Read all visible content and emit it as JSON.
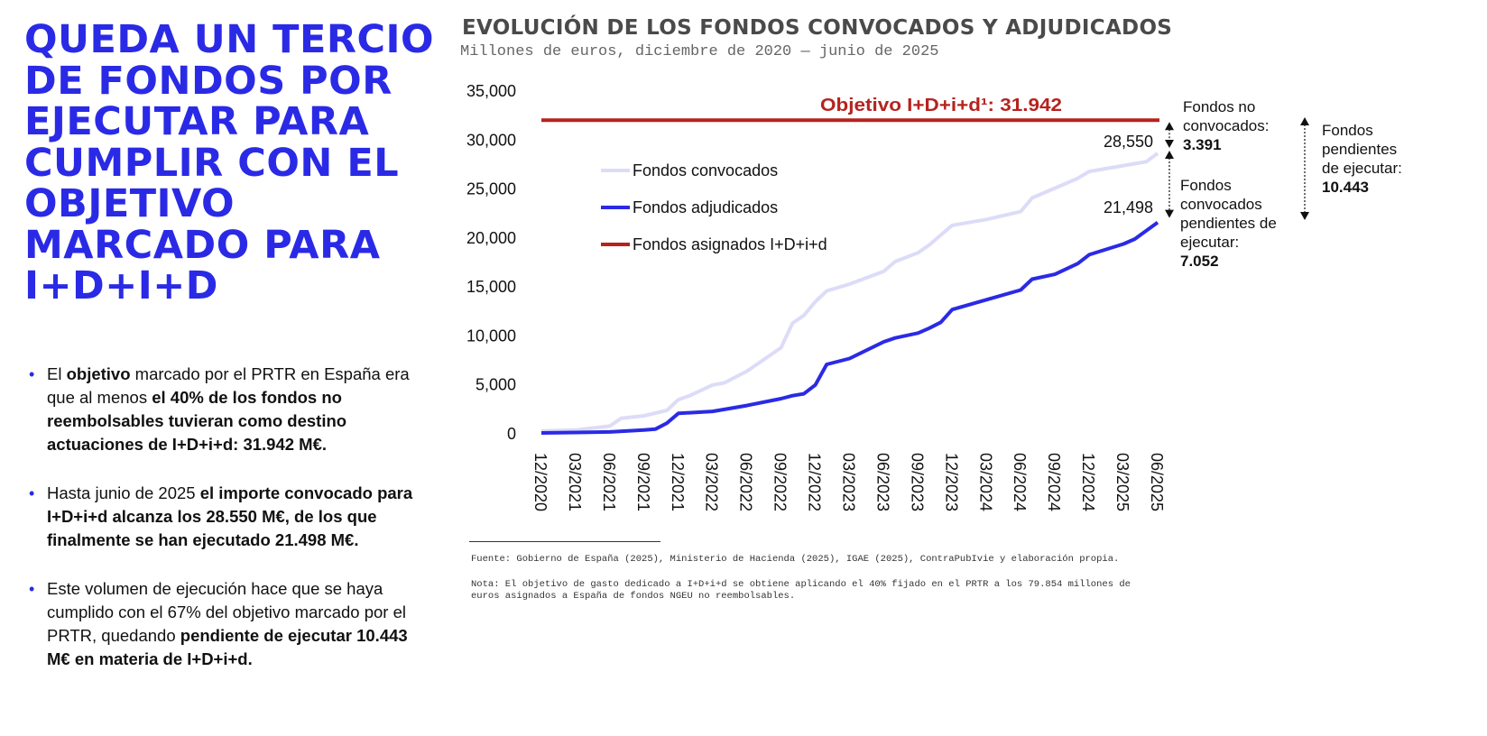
{
  "headline": "Queda un tercio de fondos por ejecutar para cumplir con el objetivo marcado para I+D+I+D",
  "bullets": [
    {
      "parts": [
        {
          "t": "El ",
          "b": false
        },
        {
          "t": "objetivo",
          "b": true
        },
        {
          "t": " marcado por el PRTR en España era que al menos ",
          "b": false
        },
        {
          "t": "el 40% de los fondos no reembolsables tuvieran como destino actuaciones de I+D+i+d: 31.942 M€.",
          "b": true
        }
      ]
    },
    {
      "parts": [
        {
          "t": "Hasta junio de 2025 ",
          "b": false
        },
        {
          "t": "el importe convocado para I+D+i+d alcanza los 28.550 M€, de los que finalmente se han ejecutado 21.498 M€.",
          "b": true
        }
      ]
    },
    {
      "parts": [
        {
          "t": "Este volumen de ejecución hace que se haya cumplido con el 67% del objetivo marcado por el PRTR, quedando ",
          "b": false
        },
        {
          "t": "pendiente de ejecutar 10.443 M€ en materia de I+D+i+d.",
          "b": true
        }
      ]
    }
  ],
  "chart_data": {
    "type": "line",
    "title": "EVOLUCIÓN DE LOS FONDOS CONVOCADOS Y ADJUDICADOS",
    "subtitle": "Millones de euros, diciembre de 2020 — junio de 2025",
    "ylim": [
      0,
      35000
    ],
    "yticks": [
      "0",
      "5,000",
      "10,000",
      "15,000",
      "20,000",
      "25,000",
      "30,000",
      "35,000"
    ],
    "ytick_values": [
      0,
      5000,
      10000,
      15000,
      20000,
      25000,
      30000,
      35000
    ],
    "xticks": [
      "12/2020",
      "03/2021",
      "06/2021",
      "09/2021",
      "12/2021",
      "03/2022",
      "06/2022",
      "09/2022",
      "12/2022",
      "03/2023",
      "06/2023",
      "09/2023",
      "12/2023",
      "03/2024",
      "06/2024",
      "09/2024",
      "12/2024",
      "03/2025",
      "06/2025"
    ],
    "grid": false,
    "legend_position": "top-left",
    "series": [
      {
        "name": "Fondos convocados",
        "color": "#dcdcf8",
        "points": [
          [
            "12/2020",
            200
          ],
          [
            "03/2021",
            300
          ],
          [
            "06/2021",
            700
          ],
          [
            "07/2021",
            1500
          ],
          [
            "09/2021",
            1750
          ],
          [
            "11/2021",
            2300
          ],
          [
            "12/2021",
            3400
          ],
          [
            "01/2022",
            3800
          ],
          [
            "03/2022",
            4900
          ],
          [
            "04/2022",
            5100
          ],
          [
            "06/2022",
            6300
          ],
          [
            "09/2022",
            8700
          ],
          [
            "10/2022",
            11200
          ],
          [
            "11/2022",
            12000
          ],
          [
            "12/2022",
            13400
          ],
          [
            "01/2023",
            14500
          ],
          [
            "03/2023",
            15200
          ],
          [
            "06/2023",
            16500
          ],
          [
            "07/2023",
            17500
          ],
          [
            "09/2023",
            18400
          ],
          [
            "10/2023",
            19200
          ],
          [
            "12/2023",
            21200
          ],
          [
            "03/2024",
            21800
          ],
          [
            "06/2024",
            22600
          ],
          [
            "07/2024",
            24000
          ],
          [
            "09/2024",
            25000
          ],
          [
            "11/2024",
            26000
          ],
          [
            "12/2024",
            26700
          ],
          [
            "03/2025",
            27300
          ],
          [
            "05/2025",
            27700
          ],
          [
            "06/2025",
            28550
          ]
        ]
      },
      {
        "name": "Fondos adjudicados",
        "color": "#2a2ae6",
        "points": [
          [
            "12/2020",
            0
          ],
          [
            "03/2021",
            50
          ],
          [
            "06/2021",
            100
          ],
          [
            "09/2021",
            300
          ],
          [
            "10/2021",
            400
          ],
          [
            "11/2021",
            1000
          ],
          [
            "12/2021",
            2000
          ],
          [
            "03/2022",
            2200
          ],
          [
            "06/2022",
            2800
          ],
          [
            "09/2022",
            3500
          ],
          [
            "10/2022",
            3800
          ],
          [
            "11/2022",
            4000
          ],
          [
            "12/2022",
            4900
          ],
          [
            "01/2023",
            7000
          ],
          [
            "03/2023",
            7600
          ],
          [
            "06/2023",
            9300
          ],
          [
            "07/2023",
            9700
          ],
          [
            "09/2023",
            10200
          ],
          [
            "10/2023",
            10700
          ],
          [
            "11/2023",
            11300
          ],
          [
            "12/2023",
            12600
          ],
          [
            "03/2024",
            13600
          ],
          [
            "06/2024",
            14600
          ],
          [
            "07/2024",
            15700
          ],
          [
            "09/2024",
            16200
          ],
          [
            "11/2024",
            17300
          ],
          [
            "12/2024",
            18200
          ],
          [
            "03/2025",
            19300
          ],
          [
            "04/2025",
            19800
          ],
          [
            "06/2025",
            21498
          ]
        ]
      },
      {
        "name": "Fondos asignados I+D+i+d",
        "color": "#b5231f",
        "constant": 31942
      }
    ],
    "annotations": {
      "target_label": "Objetivo I+D+i+d¹: 31.942",
      "last_convocados": "28,550",
      "last_adjudicados": "21,498",
      "no_convocados_label": "Fondos no convocados:",
      "no_convocados_value": "3.391",
      "pendientes_conv_label": "Fondos convocados pendientes de ejecutar:",
      "pendientes_conv_value": "7.052",
      "pendientes_total_label": "Fondos pendientes de ejecutar:",
      "pendientes_total_value": "10.443"
    }
  },
  "source": "Fuente: Gobierno de España (2025), Ministerio de Hacienda (2025), IGAE (2025), ContraPubIvie y elaboración propia.",
  "note": "Nota: El objetivo de gasto dedicado a I+D+i+d se obtiene aplicando el 40% fijado en el PRTR a los 79.854 millones de euros asignados a España de fondos NGEU no reembolsables."
}
